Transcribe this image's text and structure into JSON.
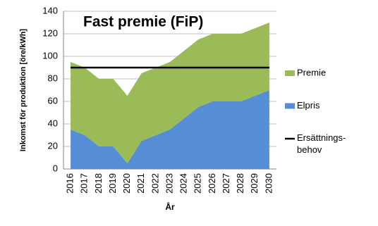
{
  "chart_data": {
    "type": "area",
    "stacked": true,
    "title": "Fast premie (FiP)",
    "ylabel": "Inkomst för produktion  [öre/kWh]",
    "xlabel": "År",
    "categories": [
      "2016",
      "2017",
      "2018",
      "2019",
      "2020",
      "2021",
      "2022",
      "2023",
      "2024",
      "2025",
      "2026",
      "2027",
      "2028",
      "2029",
      "2030"
    ],
    "series": [
      {
        "name": "Elpris",
        "color": "#558ed5",
        "values": [
          35,
          30,
          20,
          20,
          5,
          25,
          30,
          35,
          45,
          55,
          60,
          60,
          60,
          65,
          70
        ]
      },
      {
        "name": "Premie",
        "color": "#9bbb59",
        "values": [
          60,
          60,
          60,
          60,
          60,
          60,
          60,
          60,
          60,
          60,
          60,
          60,
          60,
          60,
          60
        ]
      },
      {
        "name": "Ersättnings-\nbehov",
        "color": "#000000",
        "type": "line",
        "values": [
          90,
          90,
          90,
          90,
          90,
          90,
          90,
          90,
          90,
          90,
          90,
          90,
          90,
          90,
          90
        ]
      }
    ],
    "legend_order": [
      1,
      0,
      2
    ],
    "ylim": [
      0,
      140
    ],
    "yticks": [
      0,
      20,
      40,
      60,
      80,
      100,
      120,
      140
    ],
    "grid": true
  }
}
